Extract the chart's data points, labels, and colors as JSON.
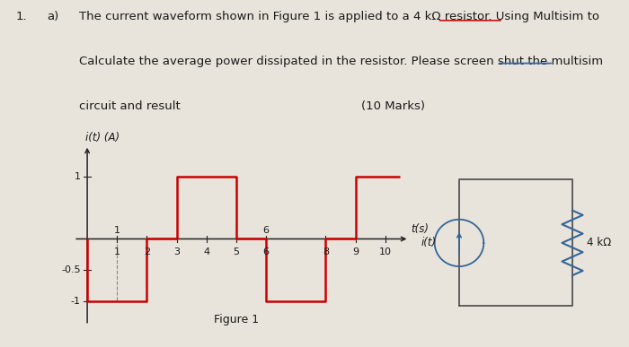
{
  "bg_color": "#e8e4dc",
  "text_color": "#1a1a1a",
  "figure_label": "Figure 1",
  "ylabel": "i(t) (A)",
  "xlabel": "t(s)",
  "waveform_color": "#cc0000",
  "waveform_x": [
    0,
    0,
    2,
    2,
    3,
    3,
    5,
    5,
    6,
    6,
    8,
    8,
    9,
    9,
    10.5
  ],
  "waveform_y": [
    0,
    -1,
    -1,
    0,
    0,
    1,
    1,
    0,
    0,
    -1,
    -1,
    0,
    0,
    1,
    1
  ],
  "xlim": [
    -0.5,
    11.0
  ],
  "ylim": [
    -1.45,
    1.6
  ],
  "xticks": [
    1,
    2,
    3,
    4,
    5,
    6,
    8,
    9,
    10
  ],
  "ytick_vals": [
    -1,
    -0.5,
    1
  ],
  "ytick_labels": [
    "-1",
    "-0.5",
    "1"
  ],
  "axis_color": "#222222",
  "circuit_color": "#336699",
  "dashed_color": "#888888",
  "line1": "The current waveform shown in Figure 1 is applied to a 4 kΩ resistor. Using Multisim to",
  "line2": "Calculate the average power dissipated in the resistor. Please screen shut the multisim",
  "line3": "circuit and result",
  "marks": "(10 Marks)",
  "underline_multisim1": [
    0.695,
    0.8
  ],
  "underline_multisim2": [
    0.79,
    0.88
  ],
  "underline_y1": 0.845,
  "underline_y2": 0.52,
  "underline_color1": "#cc0000",
  "underline_color2": "#3366aa"
}
